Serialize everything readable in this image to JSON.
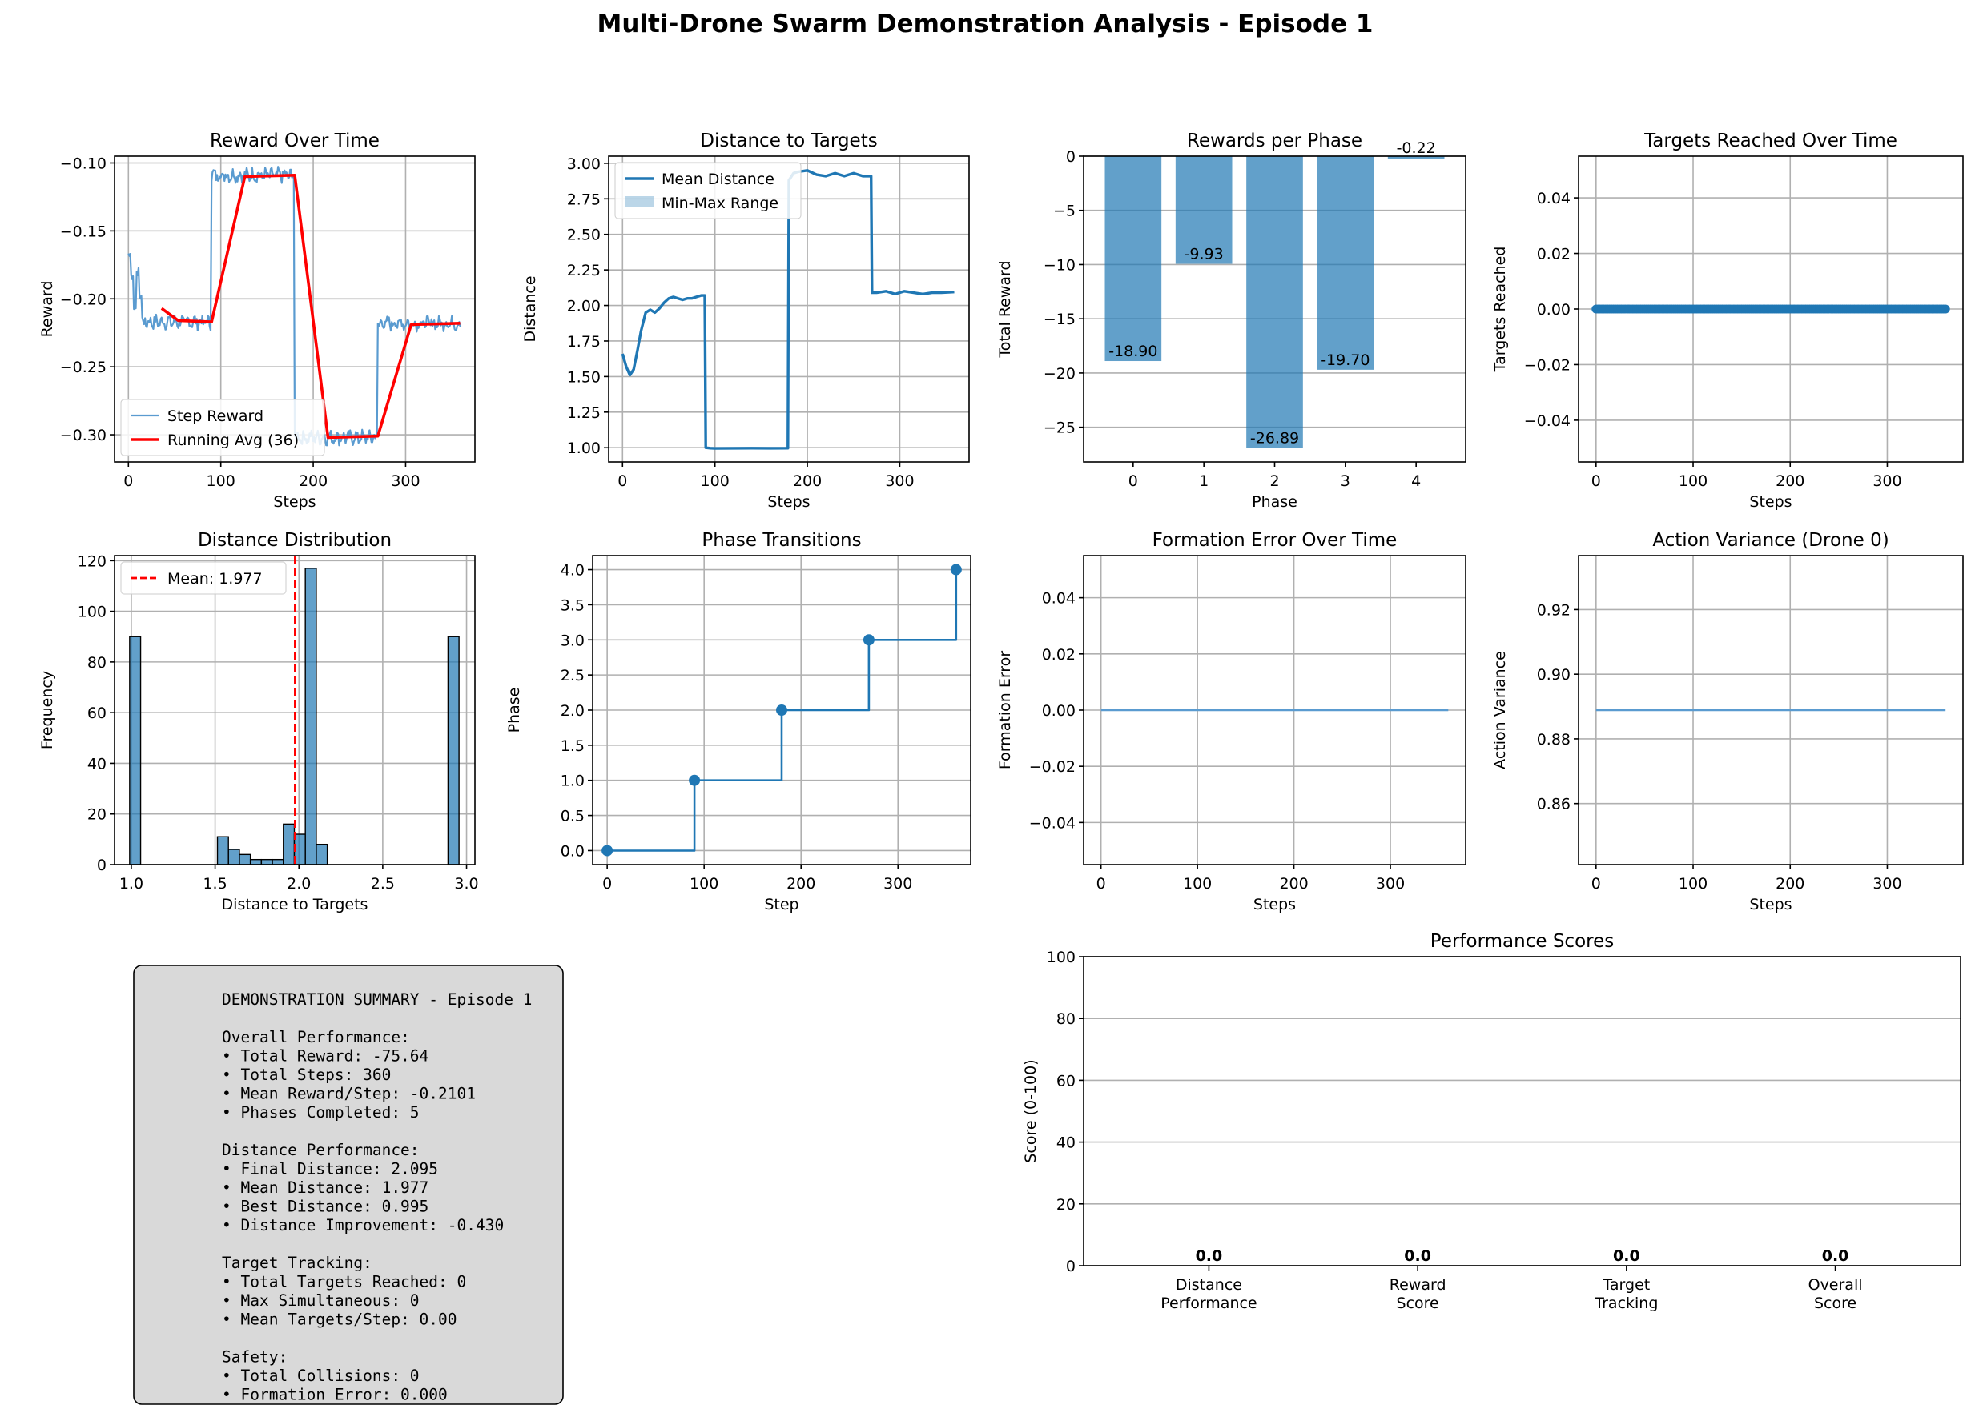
{
  "figure_title": "Multi-Drone Swarm Demonstration Analysis - Episode 1",
  "colors": {
    "blue": "#1f77b4",
    "blue_light": "#5a9bd0",
    "red": "#ff0000",
    "summary_bg": "#d9d9d9"
  },
  "chart_data": [
    {
      "id": "reward",
      "type": "line",
      "title": "Reward Over Time",
      "xlabel": "Steps",
      "ylabel": "Reward",
      "xlim": [
        -15,
        375
      ],
      "ylim": [
        -0.32,
        -0.095
      ],
      "xticks": [
        0,
        100,
        200,
        300
      ],
      "yticks": [
        -0.3,
        -0.25,
        -0.2,
        -0.15,
        -0.1
      ],
      "yticklabels": [
        "−0.30",
        "−0.25",
        "−0.20",
        "−0.15",
        "−0.10"
      ],
      "grid": true,
      "legend": "lower-left",
      "series": [
        {
          "name": "Step Reward",
          "kind": "noisy-phases",
          "phases": [
            [
              0,
              90,
              -0.217
            ],
            [
              90,
              180,
              -0.109
            ],
            [
              180,
              270,
              -0.302
            ],
            [
              270,
              360,
              -0.218
            ]
          ],
          "noise": 0.004,
          "start_values": [
            -0.167,
            -0.185,
            -0.205,
            -0.18,
            -0.198
          ]
        },
        {
          "name": "Running Avg (36)",
          "kind": "polyline",
          "x": [
            36,
            54,
            90,
            126,
            180,
            216,
            270,
            306,
            359
          ],
          "y": [
            -0.207,
            -0.216,
            -0.217,
            -0.11,
            -0.109,
            -0.302,
            -0.301,
            -0.219,
            -0.218
          ]
        }
      ]
    },
    {
      "id": "distance",
      "type": "line",
      "title": "Distance to Targets",
      "xlabel": "Steps",
      "ylabel": "Distance",
      "xlim": [
        -15,
        375
      ],
      "ylim": [
        0.9,
        3.05
      ],
      "xticks": [
        0,
        100,
        200,
        300
      ],
      "yticks": [
        1.0,
        1.25,
        1.5,
        1.75,
        2.0,
        2.25,
        2.5,
        2.75,
        3.0
      ],
      "yticklabels": [
        "1.00",
        "1.25",
        "1.50",
        "1.75",
        "2.00",
        "2.25",
        "2.50",
        "2.75",
        "3.00"
      ],
      "grid": true,
      "legend": "upper-left",
      "series": [
        {
          "name": "Mean Distance",
          "x": [
            0,
            4,
            8,
            12,
            16,
            20,
            25,
            30,
            35,
            40,
            45,
            50,
            55,
            60,
            65,
            70,
            75,
            80,
            85,
            89,
            90,
            95,
            100,
            120,
            140,
            160,
            179,
            180,
            185,
            190,
            200,
            210,
            220,
            230,
            240,
            250,
            260,
            269,
            270,
            275,
            285,
            295,
            305,
            315,
            325,
            335,
            345,
            359
          ],
          "y": [
            1.66,
            1.57,
            1.51,
            1.55,
            1.68,
            1.82,
            1.95,
            1.97,
            1.95,
            1.98,
            2.02,
            2.05,
            2.06,
            2.05,
            2.04,
            2.05,
            2.05,
            2.06,
            2.07,
            2.07,
            1.0,
            0.997,
            0.995,
            0.996,
            0.997,
            0.996,
            0.997,
            2.88,
            2.93,
            2.94,
            2.95,
            2.92,
            2.91,
            2.93,
            2.91,
            2.93,
            2.91,
            2.91,
            2.09,
            2.09,
            2.1,
            2.08,
            2.1,
            2.09,
            2.08,
            2.09,
            2.09,
            2.095
          ]
        },
        {
          "name": "Min-Max Range"
        }
      ]
    },
    {
      "id": "phase_rewards",
      "type": "bar",
      "title": "Rewards per Phase",
      "xlabel": "Phase",
      "ylabel": "Total Reward",
      "categories": [
        "0",
        "1",
        "2",
        "3",
        "4"
      ],
      "values": [
        -18.9,
        -9.93,
        -26.89,
        -19.7,
        -0.22
      ],
      "labels": [
        "-18.90",
        "-9.93",
        "-26.89",
        "-19.70",
        "-0.22"
      ],
      "xlim": [
        -0.7,
        4.7
      ],
      "ylim": [
        -28.2,
        0
      ],
      "yticks": [
        -25,
        -20,
        -15,
        -10,
        -5,
        0
      ],
      "yticklabels": [
        "−25",
        "−20",
        "−15",
        "−10",
        "−5",
        "0"
      ],
      "grid": true
    },
    {
      "id": "targets",
      "type": "scatter",
      "title": "Targets Reached Over Time",
      "xlabel": "Steps",
      "ylabel": "Targets Reached",
      "xlim": [
        -18,
        378
      ],
      "ylim": [
        -0.055,
        0.055
      ],
      "xticks": [
        0,
        100,
        200,
        300
      ],
      "yticks": [
        -0.04,
        -0.02,
        0.0,
        0.02,
        0.04
      ],
      "yticklabels": [
        "−0.04",
        "−0.02",
        "0.00",
        "0.02",
        "0.04"
      ],
      "grid": true,
      "series": [
        {
          "x_range": [
            0,
            360
          ],
          "y": 0
        }
      ]
    },
    {
      "id": "dist_hist",
      "type": "bar",
      "title": "Distance Distribution",
      "xlabel": "Distance to Targets",
      "ylabel": "Frequency",
      "xlim": [
        0.9,
        3.05
      ],
      "ylim": [
        0,
        122
      ],
      "xticks": [
        1.0,
        1.5,
        2.0,
        2.5,
        3.0
      ],
      "xticklabels": [
        "1.0",
        "1.5",
        "2.0",
        "2.5",
        "3.0"
      ],
      "yticks": [
        0,
        20,
        40,
        60,
        80,
        100,
        120
      ],
      "yticklabels": [
        "0",
        "20",
        "40",
        "60",
        "80",
        "100",
        "120"
      ],
      "grid": true,
      "legend": "upper-left",
      "bin_start": 0.99,
      "bin_width": 0.0655,
      "counts": [
        90,
        0,
        0,
        0,
        0,
        0,
        0,
        0,
        11,
        6,
        4,
        2,
        2,
        2,
        16,
        12,
        117,
        8,
        0,
        0,
        0,
        0,
        0,
        0,
        0,
        0,
        0,
        0,
        0,
        90
      ],
      "mean": 1.977,
      "mean_label": "Mean: 1.977"
    },
    {
      "id": "phase_transitions",
      "type": "line",
      "title": "Phase Transitions",
      "xlabel": "Step",
      "ylabel": "Phase",
      "xlim": [
        -15,
        375
      ],
      "ylim": [
        -0.2,
        4.2
      ],
      "xticks": [
        0,
        100,
        200,
        300
      ],
      "yticks": [
        0.0,
        0.5,
        1.0,
        1.5,
        2.0,
        2.5,
        3.0,
        3.5,
        4.0
      ],
      "yticklabels": [
        "0.0",
        "0.5",
        "1.0",
        "1.5",
        "2.0",
        "2.5",
        "3.0",
        "3.5",
        "4.0"
      ],
      "grid": true,
      "series": [
        {
          "x": [
            0,
            90,
            180,
            270,
            360
          ],
          "y": [
            0,
            1,
            2,
            3,
            4
          ]
        }
      ]
    },
    {
      "id": "formation",
      "type": "line",
      "title": "Formation Error Over Time",
      "xlabel": "Steps",
      "ylabel": "Formation Error",
      "xlim": [
        -18,
        378
      ],
      "ylim": [
        -0.055,
        0.055
      ],
      "xticks": [
        0,
        100,
        200,
        300
      ],
      "yticks": [
        -0.04,
        -0.02,
        0.0,
        0.02,
        0.04
      ],
      "yticklabels": [
        "−0.04",
        "−0.02",
        "0.00",
        "0.02",
        "0.04"
      ],
      "grid": true,
      "series": [
        {
          "x": [
            0,
            360
          ],
          "y": [
            0,
            0
          ]
        }
      ]
    },
    {
      "id": "action_var",
      "type": "line",
      "title": "Action Variance (Drone 0)",
      "xlabel": "Steps",
      "ylabel": "Action Variance",
      "xlim": [
        -18,
        378
      ],
      "ylim": [
        0.8411,
        0.9367
      ],
      "xticks": [
        0,
        100,
        200,
        300
      ],
      "yticks": [
        0.86,
        0.88,
        0.9,
        0.92
      ],
      "yticklabels": [
        "0.86",
        "0.88",
        "0.90",
        "0.92"
      ],
      "grid": true,
      "series": [
        {
          "x": [
            0,
            360
          ],
          "y": [
            0.8889,
            0.8889
          ]
        }
      ]
    },
    {
      "id": "scores",
      "type": "bar",
      "title": "Performance Scores",
      "ylabel": "Score (0-100)",
      "categories": [
        [
          "Distance",
          "Performance"
        ],
        [
          "Reward",
          "Score"
        ],
        [
          "Target",
          "Tracking"
        ],
        [
          "Overall",
          "Score"
        ]
      ],
      "values": [
        0.0,
        0.0,
        0.0,
        0.0
      ],
      "labels": [
        "0.0",
        "0.0",
        "0.0",
        "0.0"
      ],
      "xlim": [
        -0.6,
        3.6
      ],
      "ylim": [
        0,
        100
      ],
      "yticks": [
        0,
        20,
        40,
        60,
        80,
        100
      ],
      "yticklabels": [
        "0",
        "20",
        "40",
        "60",
        "80",
        "100"
      ],
      "grid": true
    }
  ],
  "summary": {
    "lines": [
      "DEMONSTRATION SUMMARY - Episode 1",
      "",
      "Overall Performance:",
      "• Total Reward: -75.64",
      "• Total Steps: 360",
      "• Mean Reward/Step: -0.2101",
      "• Phases Completed: 5",
      "",
      "Distance Performance:",
      "• Final Distance: 2.095",
      "• Mean Distance: 1.977",
      "• Best Distance: 0.995",
      "• Distance Improvement: -0.430",
      "",
      "Target Tracking:",
      "• Total Targets Reached: 0",
      "• Max Simultaneous: 0",
      "• Mean Targets/Step: 0.00",
      "",
      "Safety:",
      "• Total Collisions: 0",
      "• Formation Error: 0.000"
    ]
  }
}
